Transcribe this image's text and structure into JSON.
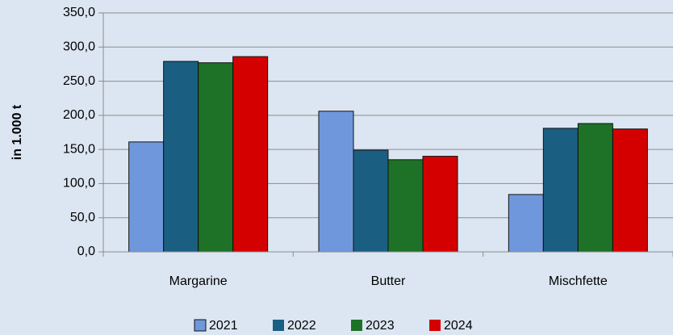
{
  "chart_data": {
    "type": "bar",
    "y_label": "in 1.000 t",
    "categories": [
      "Margarine",
      "Butter",
      "Mischfette"
    ],
    "series": [
      {
        "name": "2021",
        "color": "#6f97dc",
        "values": [
          161,
          206,
          84
        ]
      },
      {
        "name": "2022",
        "color": "#1a5f82",
        "values": [
          279,
          149,
          181
        ]
      },
      {
        "name": "2023",
        "color": "#1e7228",
        "values": [
          277,
          135,
          188
        ]
      },
      {
        "name": "2024",
        "color": "#d40000",
        "values": [
          286,
          140,
          180
        ]
      }
    ],
    "ylim": [
      0,
      350
    ],
    "yticks": [
      {
        "value": 0,
        "label": "0,0"
      },
      {
        "value": 50,
        "label": "50,0"
      },
      {
        "value": 100,
        "label": "100,0"
      },
      {
        "value": 150,
        "label": "150,0"
      },
      {
        "value": 200,
        "label": "200,0"
      },
      {
        "value": 250,
        "label": "250,0"
      },
      {
        "value": 300,
        "label": "300,0"
      },
      {
        "value": 350,
        "label": "350,0"
      }
    ],
    "grid": true
  }
}
